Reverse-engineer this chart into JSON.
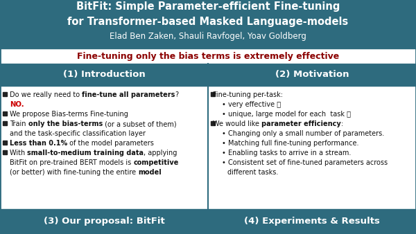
{
  "title_line1": "BitFit: Simple Parameter-efficient Fine-tuning",
  "title_line2": "for Transformer-based Masked Language-models",
  "authors": "Elad Ben Zaken, Shauli Ravfogel, Yoav Goldberg",
  "subtitle": "Fine-tuning only the bias terms is extremely effective",
  "header_bg": "#2e6b7e",
  "header_text_color": "#ffffff",
  "subtitle_color": "#8b0000",
  "box_header_bg": "#2e6b7e",
  "box_header_text": "#ffffff",
  "box_body_bg": "#ffffff",
  "box_bottom_bg": "#2e6b7e",
  "box_bottom_text": "#ffffff",
  "bg_color": "#e8e8e8",
  "border_color": "#2e6b7e",
  "intro_header": "(1) Introduction",
  "motiv_header": "(2) Motivation",
  "proposal_header": "(3) Our proposal: BitFit",
  "experiments_header": "(4) Experiments & Results"
}
